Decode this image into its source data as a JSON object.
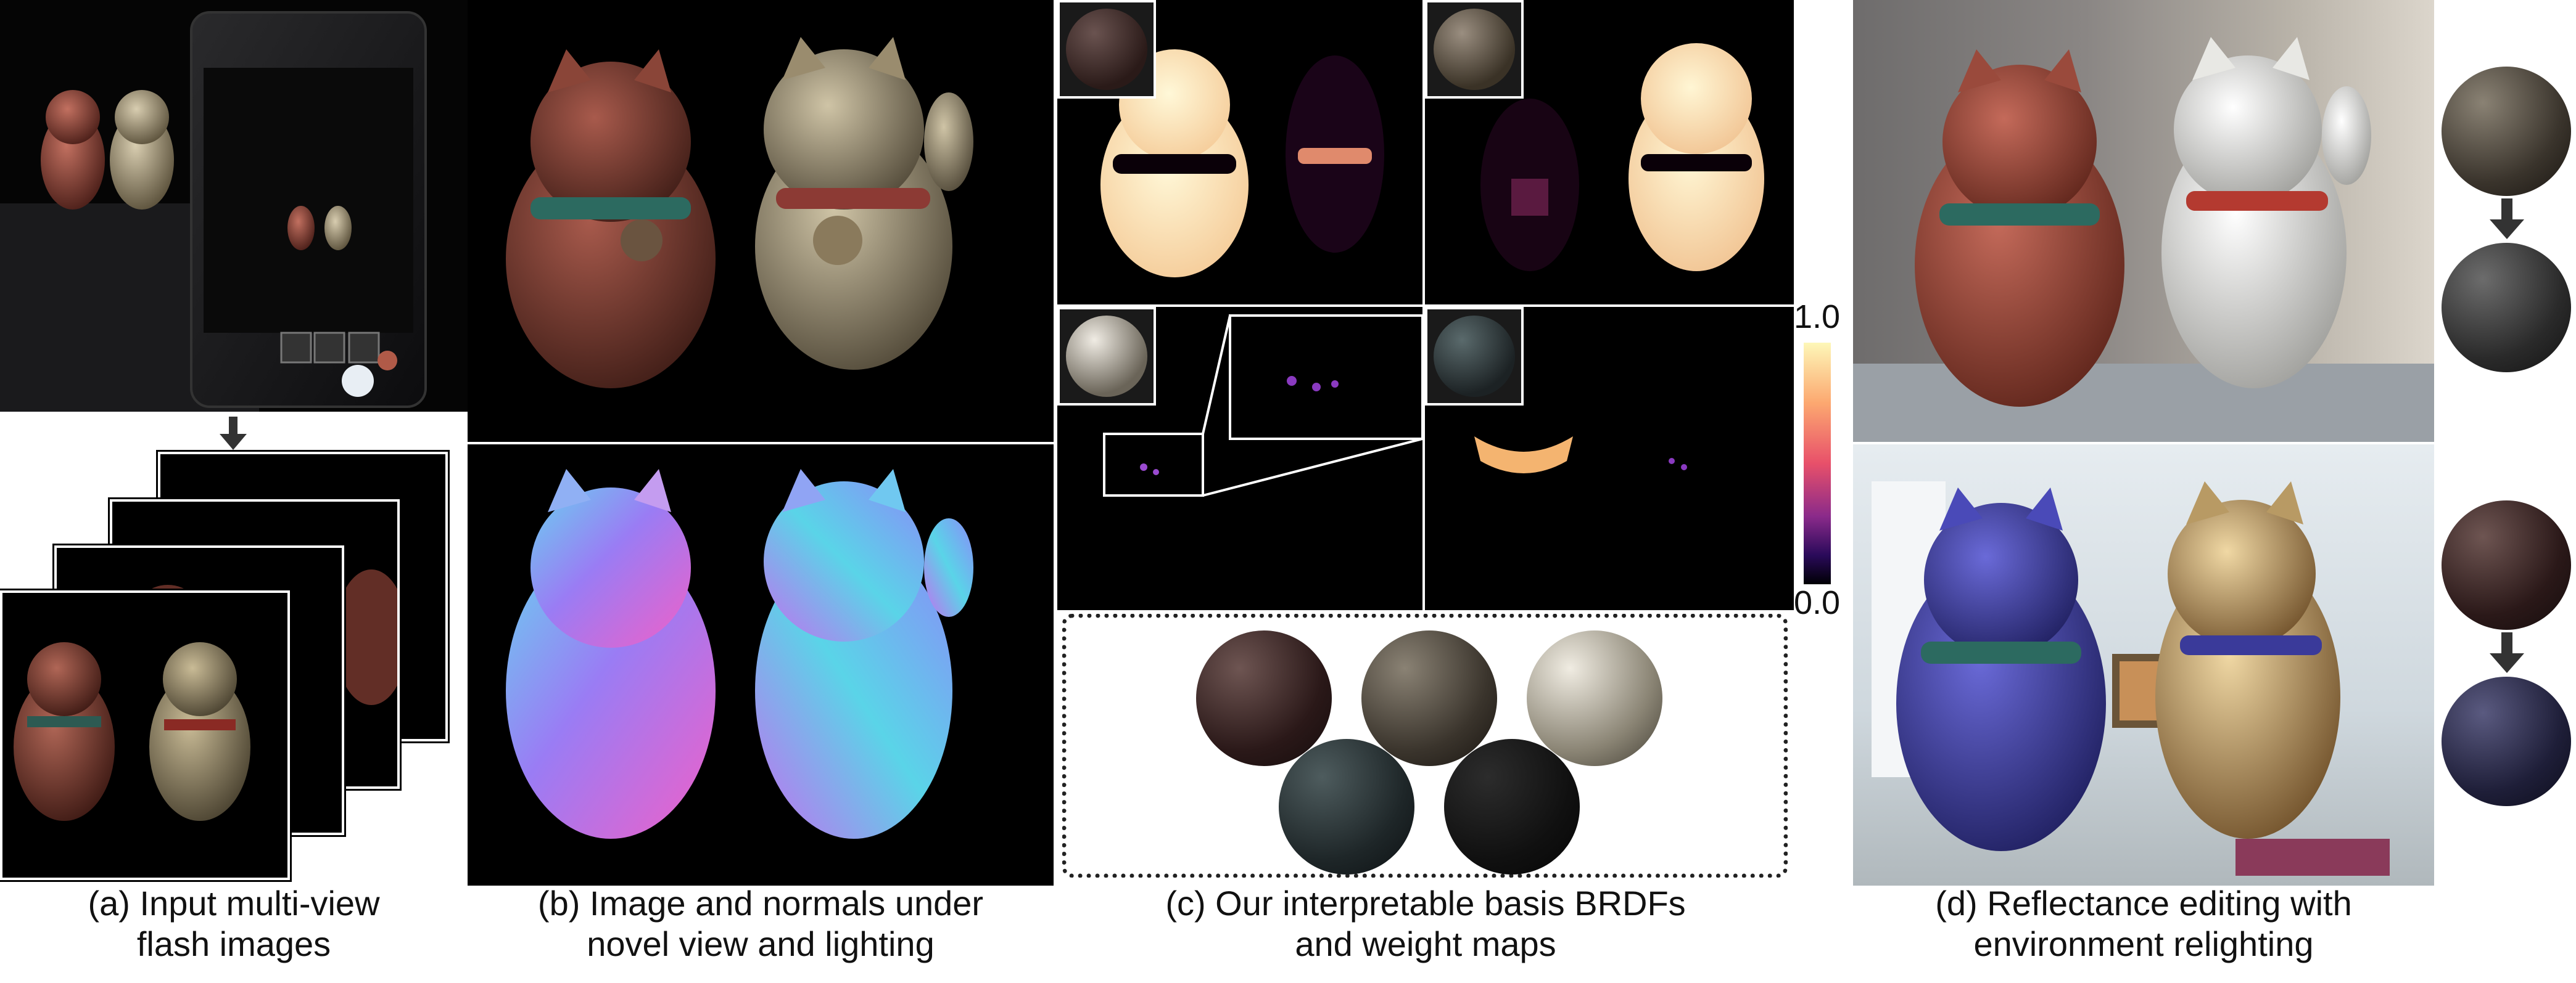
{
  "captions": {
    "a": {
      "line1": "(a) Input multi-view",
      "line2": "flash images"
    },
    "b": {
      "line1": "(b) Image and normals under",
      "line2": "novel view and lighting"
    },
    "c": {
      "line1": "(c) Our interpretable basis BRDFs",
      "line2": "and weight maps"
    },
    "d": {
      "line1": "(d) Reflectance editing with",
      "line2": "environment relighting"
    }
  },
  "colorbar": {
    "max_label": "1.0",
    "min_label": "0.0"
  },
  "colors": {
    "clay_red": "#8a4538",
    "gold": "#9a8c6e",
    "white_cat": "#dcdcd8",
    "blue_cat": "#3a3a8a",
    "weight_hot": "#ffe8a8"
  },
  "icons": {
    "down_arrow": "down-arrow-icon"
  }
}
